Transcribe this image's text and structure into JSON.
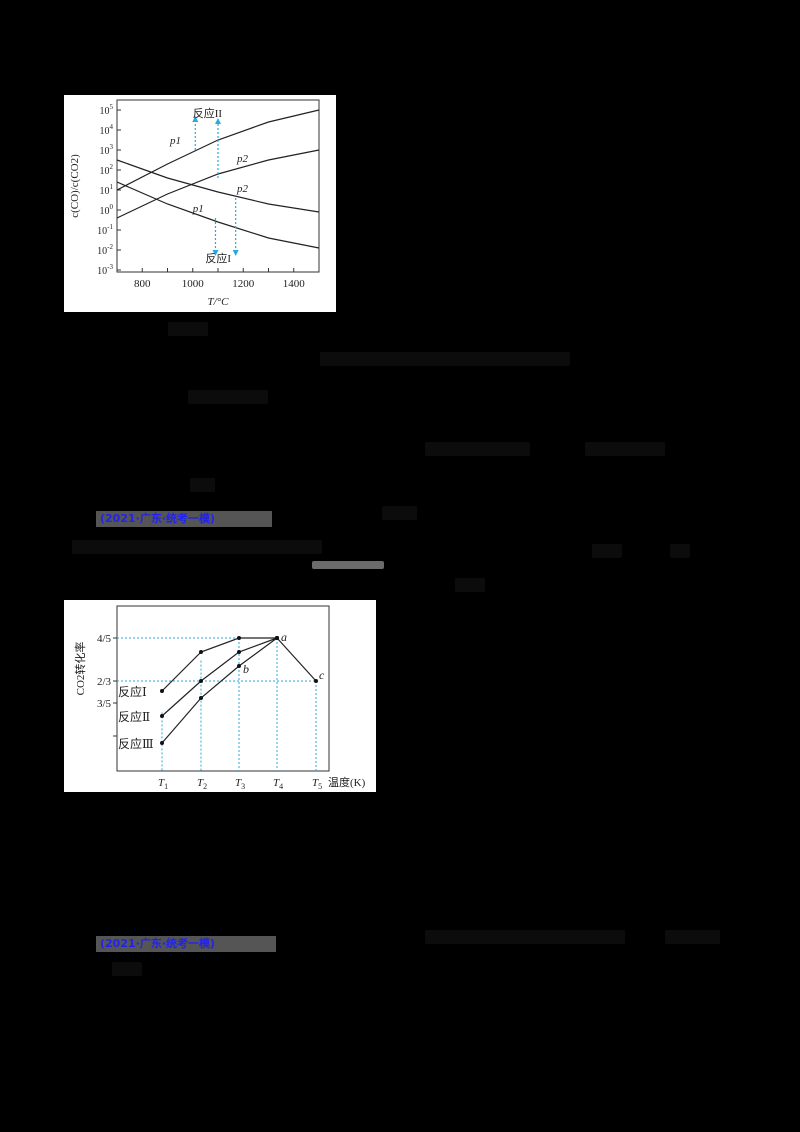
{
  "source_tags": [
    {
      "label": "(2021·广东·统考一模)",
      "color": "#2222ee"
    },
    {
      "label": "(2021·广东·统考一模)",
      "color": "#2222ee"
    }
  ],
  "chart_data": [
    {
      "type": "line",
      "title": "",
      "xlabel": "T/°C",
      "ylabel": "c(CO)/c(CO2)",
      "xlim": [
        700,
        1500
      ],
      "ylim_log10": [
        -3,
        5
      ],
      "yscale": "log",
      "x_ticks": [
        800,
        1000,
        1200,
        1400
      ],
      "y_ticks": [
        "10^5",
        "10^4",
        "10^3",
        "10^2",
        "10^1",
        "10^0",
        "10^-1",
        "10^-2",
        "10^-3"
      ],
      "x": [
        700,
        900,
        1100,
        1300,
        1500
      ],
      "series": [
        {
          "name": "反应II p1",
          "log10_values": [
            1.0,
            2.3,
            3.5,
            4.4,
            5.0
          ]
        },
        {
          "name": "反应II p2",
          "log10_values": [
            -0.4,
            0.8,
            1.8,
            2.5,
            3.0
          ]
        },
        {
          "name": "反应I p2",
          "log10_values": [
            2.5,
            1.6,
            0.9,
            0.3,
            -0.1
          ]
        },
        {
          "name": "反应I p1",
          "log10_values": [
            1.4,
            0.3,
            -0.6,
            -1.4,
            -1.9
          ]
        }
      ],
      "annotations": [
        "反应II",
        "反应I",
        "p1",
        "p2",
        "p1",
        "p2"
      ],
      "grid": false
    },
    {
      "type": "line",
      "title": "",
      "xlabel": "温度(K)",
      "ylabel": "CO2转化率",
      "categories": [
        "T1",
        "T2",
        "T3",
        "T4",
        "T5"
      ],
      "y_ticks": [
        "4/5",
        "2/3",
        "3/5"
      ],
      "series": [
        {
          "name": "反应Ⅰ",
          "values": [
            0.57,
            0.73,
            0.8,
            0.8
          ]
        },
        {
          "name": "反应Ⅱ",
          "values": [
            0.47,
            0.667,
            0.73,
            0.8
          ]
        },
        {
          "name": "反应Ⅲ",
          "values": [
            0.36,
            0.6,
            0.7,
            0.8
          ]
        },
        {
          "name": "a→c",
          "points": [
            [
              "T4",
              0.8
            ],
            [
              "T5",
              0.667
            ]
          ]
        }
      ],
      "point_labels": {
        "a": [
          "T4",
          "4/5"
        ],
        "b": [
          "T3",
          "反应Ⅲ"
        ],
        "c": [
          "T5",
          "2/3"
        ]
      },
      "grid": false
    }
  ]
}
